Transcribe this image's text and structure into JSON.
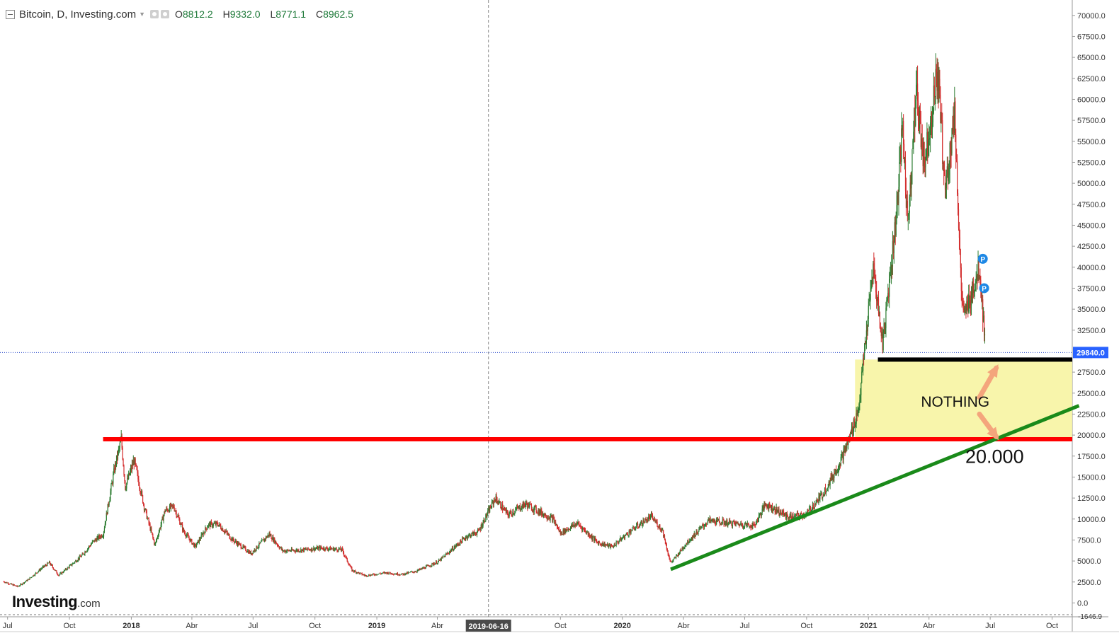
{
  "header": {
    "symbol": "Bitcoin, D, Investing.com",
    "open_label": "O",
    "open": "8812.2",
    "high_label": "H",
    "high": "9332.0",
    "low_label": "L",
    "low": "8771.1",
    "close_label": "C",
    "close": "8962.5"
  },
  "logo": {
    "name": "Investing",
    "domain": ".com"
  },
  "chart_data": {
    "type": "candlestick",
    "title": "Bitcoin, D, Investing.com",
    "interval": "D",
    "price_axis": {
      "position": "right",
      "ticks": [
        "70000.0",
        "67500.0",
        "65000.0",
        "62500.0",
        "60000.0",
        "57500.0",
        "55000.0",
        "52500.0",
        "50000.0",
        "47500.0",
        "45000.0",
        "42500.0",
        "40000.0",
        "37500.0",
        "35000.0",
        "32500.0",
        "27500.0",
        "25000.0",
        "22500.0",
        "20000.0",
        "17500.0",
        "15000.0",
        "12500.0",
        "10000.0",
        "7500.0",
        "5000.0",
        "2500.0",
        "0.0"
      ],
      "range": [
        -1646.9,
        71500
      ],
      "min_label": "-1646.9",
      "current_price_label": "29840.0",
      "current_price": 29840
    },
    "time_axis": {
      "range": [
        "2017-06-25",
        "2021-10-31"
      ],
      "ticks": [
        {
          "date": "2017-07-01",
          "label": "Jul",
          "bold": false
        },
        {
          "date": "2017-10-01",
          "label": "Oct",
          "bold": false
        },
        {
          "date": "2018-01-01",
          "label": "2018",
          "bold": true
        },
        {
          "date": "2018-04-01",
          "label": "Abr",
          "bold": false
        },
        {
          "date": "2018-07-01",
          "label": "Jul",
          "bold": false
        },
        {
          "date": "2018-10-01",
          "label": "Oct",
          "bold": false
        },
        {
          "date": "2019-01-01",
          "label": "2019",
          "bold": true
        },
        {
          "date": "2019-04-01",
          "label": "Abr",
          "bold": false
        },
        {
          "date": "2019-10-01",
          "label": "Oct",
          "bold": false
        },
        {
          "date": "2020-01-01",
          "label": "2020",
          "bold": true
        },
        {
          "date": "2020-04-01",
          "label": "Abr",
          "bold": false
        },
        {
          "date": "2020-07-01",
          "label": "Jul",
          "bold": false
        },
        {
          "date": "2020-10-01",
          "label": "Oct",
          "bold": false
        },
        {
          "date": "2021-01-01",
          "label": "2021",
          "bold": true
        },
        {
          "date": "2021-04-01",
          "label": "Abr",
          "bold": false
        },
        {
          "date": "2021-07-01",
          "label": "Jul",
          "bold": false
        },
        {
          "date": "2021-10-01",
          "label": "Oct",
          "bold": false
        }
      ],
      "crosshair": {
        "date": "2019-06-16",
        "label": "2019-06-16"
      }
    },
    "series": [
      {
        "name": "Bitcoin",
        "kind": "close",
        "points": [
          [
            "2017-06-25",
            2550
          ],
          [
            "2017-07-16",
            1950
          ],
          [
            "2017-08-01",
            2800
          ],
          [
            "2017-08-20",
            4100
          ],
          [
            "2017-09-01",
            4800
          ],
          [
            "2017-09-15",
            3300
          ],
          [
            "2017-10-01",
            4350
          ],
          [
            "2017-10-20",
            5700
          ],
          [
            "2017-11-05",
            7300
          ],
          [
            "2017-11-20",
            8200
          ],
          [
            "2017-12-07",
            16000
          ],
          [
            "2017-12-17",
            19500
          ],
          [
            "2017-12-23",
            13800
          ],
          [
            "2018-01-05",
            17000
          ],
          [
            "2018-01-20",
            11500
          ],
          [
            "2018-02-05",
            6900
          ],
          [
            "2018-02-20",
            11000
          ],
          [
            "2018-03-05",
            11500
          ],
          [
            "2018-03-20",
            8500
          ],
          [
            "2018-04-06",
            6700
          ],
          [
            "2018-04-25",
            9300
          ],
          [
            "2018-05-10",
            9400
          ],
          [
            "2018-06-01",
            7500
          ],
          [
            "2018-06-28",
            5900
          ],
          [
            "2018-07-25",
            8200
          ],
          [
            "2018-08-14",
            6200
          ],
          [
            "2018-09-10",
            6300
          ],
          [
            "2018-10-10",
            6550
          ],
          [
            "2018-11-10",
            6350
          ],
          [
            "2018-11-25",
            3900
          ],
          [
            "2018-12-15",
            3250
          ],
          [
            "2019-01-15",
            3600
          ],
          [
            "2019-02-07",
            3400
          ],
          [
            "2019-03-01",
            3800
          ],
          [
            "2019-04-02",
            4900
          ],
          [
            "2019-05-14",
            7900
          ],
          [
            "2019-06-01",
            8500
          ],
          [
            "2019-06-26",
            12500
          ],
          [
            "2019-07-15",
            10500
          ],
          [
            "2019-08-10",
            11800
          ],
          [
            "2019-09-20",
            10000
          ],
          [
            "2019-10-01",
            8300
          ],
          [
            "2019-10-26",
            9500
          ],
          [
            "2019-11-25",
            7200
          ],
          [
            "2019-12-17",
            6700
          ],
          [
            "2020-01-15",
            8700
          ],
          [
            "2020-02-13",
            10300
          ],
          [
            "2020-03-01",
            8600
          ],
          [
            "2020-03-12",
            4900
          ],
          [
            "2020-03-16",
            5000
          ],
          [
            "2020-04-06",
            7200
          ],
          [
            "2020-05-08",
            9800
          ],
          [
            "2020-06-01",
            9600
          ],
          [
            "2020-07-15",
            9200
          ],
          [
            "2020-08-01",
            11800
          ],
          [
            "2020-09-05",
            10200
          ],
          [
            "2020-10-01",
            10600
          ],
          [
            "2020-10-25",
            13000
          ],
          [
            "2020-11-15",
            16000
          ],
          [
            "2020-12-01",
            19000
          ],
          [
            "2020-12-17",
            23000
          ],
          [
            "2021-01-08",
            40000
          ],
          [
            "2021-01-22",
            31000
          ],
          [
            "2021-02-10",
            45000
          ],
          [
            "2021-02-21",
            57000
          ],
          [
            "2021-02-28",
            45000
          ],
          [
            "2021-03-13",
            61000
          ],
          [
            "2021-03-25",
            52500
          ],
          [
            "2021-04-14",
            63500
          ],
          [
            "2021-04-25",
            49000
          ],
          [
            "2021-05-09",
            58500
          ],
          [
            "2021-05-19",
            37000
          ],
          [
            "2021-05-23",
            34000
          ],
          [
            "2021-06-01",
            36500
          ],
          [
            "2021-06-15",
            40000
          ],
          [
            "2021-06-22",
            32500
          ],
          [
            "2021-06-24",
            29840
          ]
        ]
      }
    ],
    "drawings": [
      {
        "kind": "horizontal-line",
        "color": "#ff0000",
        "price": 19500,
        "from": "2017-11-20",
        "to": "2021-10-31"
      },
      {
        "kind": "horizontal-line",
        "color": "#000000",
        "price": 29000,
        "from": "2021-01-15",
        "to": "2021-10-31"
      },
      {
        "kind": "trend-line",
        "color": "#1a8a1a",
        "from": [
          "2020-03-13",
          4000
        ],
        "to": [
          "2021-11-10",
          23500
        ]
      },
      {
        "kind": "rectangle",
        "color": "#f7f39c",
        "from": [
          "2020-12-12",
          19500
        ],
        "to": [
          "2021-10-31",
          29000
        ]
      },
      {
        "kind": "arrow",
        "color": "#f4a57c",
        "from": [
          "2021-06-15",
          24500
        ],
        "to": [
          "2021-07-10",
          28000
        ]
      },
      {
        "kind": "arrow",
        "color": "#f4a57c",
        "from": [
          "2021-06-15",
          22500
        ],
        "to": [
          "2021-07-10",
          19800
        ]
      },
      {
        "kind": "marker",
        "label": "P",
        "color": "#1e88e5",
        "at": [
          "2021-06-20",
          41000
        ]
      },
      {
        "kind": "marker",
        "label": "P",
        "color": "#1e88e5",
        "at": [
          "2021-06-22",
          37500
        ]
      }
    ],
    "annotations": [
      {
        "text": "NOTHING",
        "at": [
          "2021-03-20",
          23400
        ]
      },
      {
        "text": "20.000",
        "at": [
          "2021-05-25",
          16700
        ]
      }
    ],
    "grid": false,
    "legend": "none"
  }
}
